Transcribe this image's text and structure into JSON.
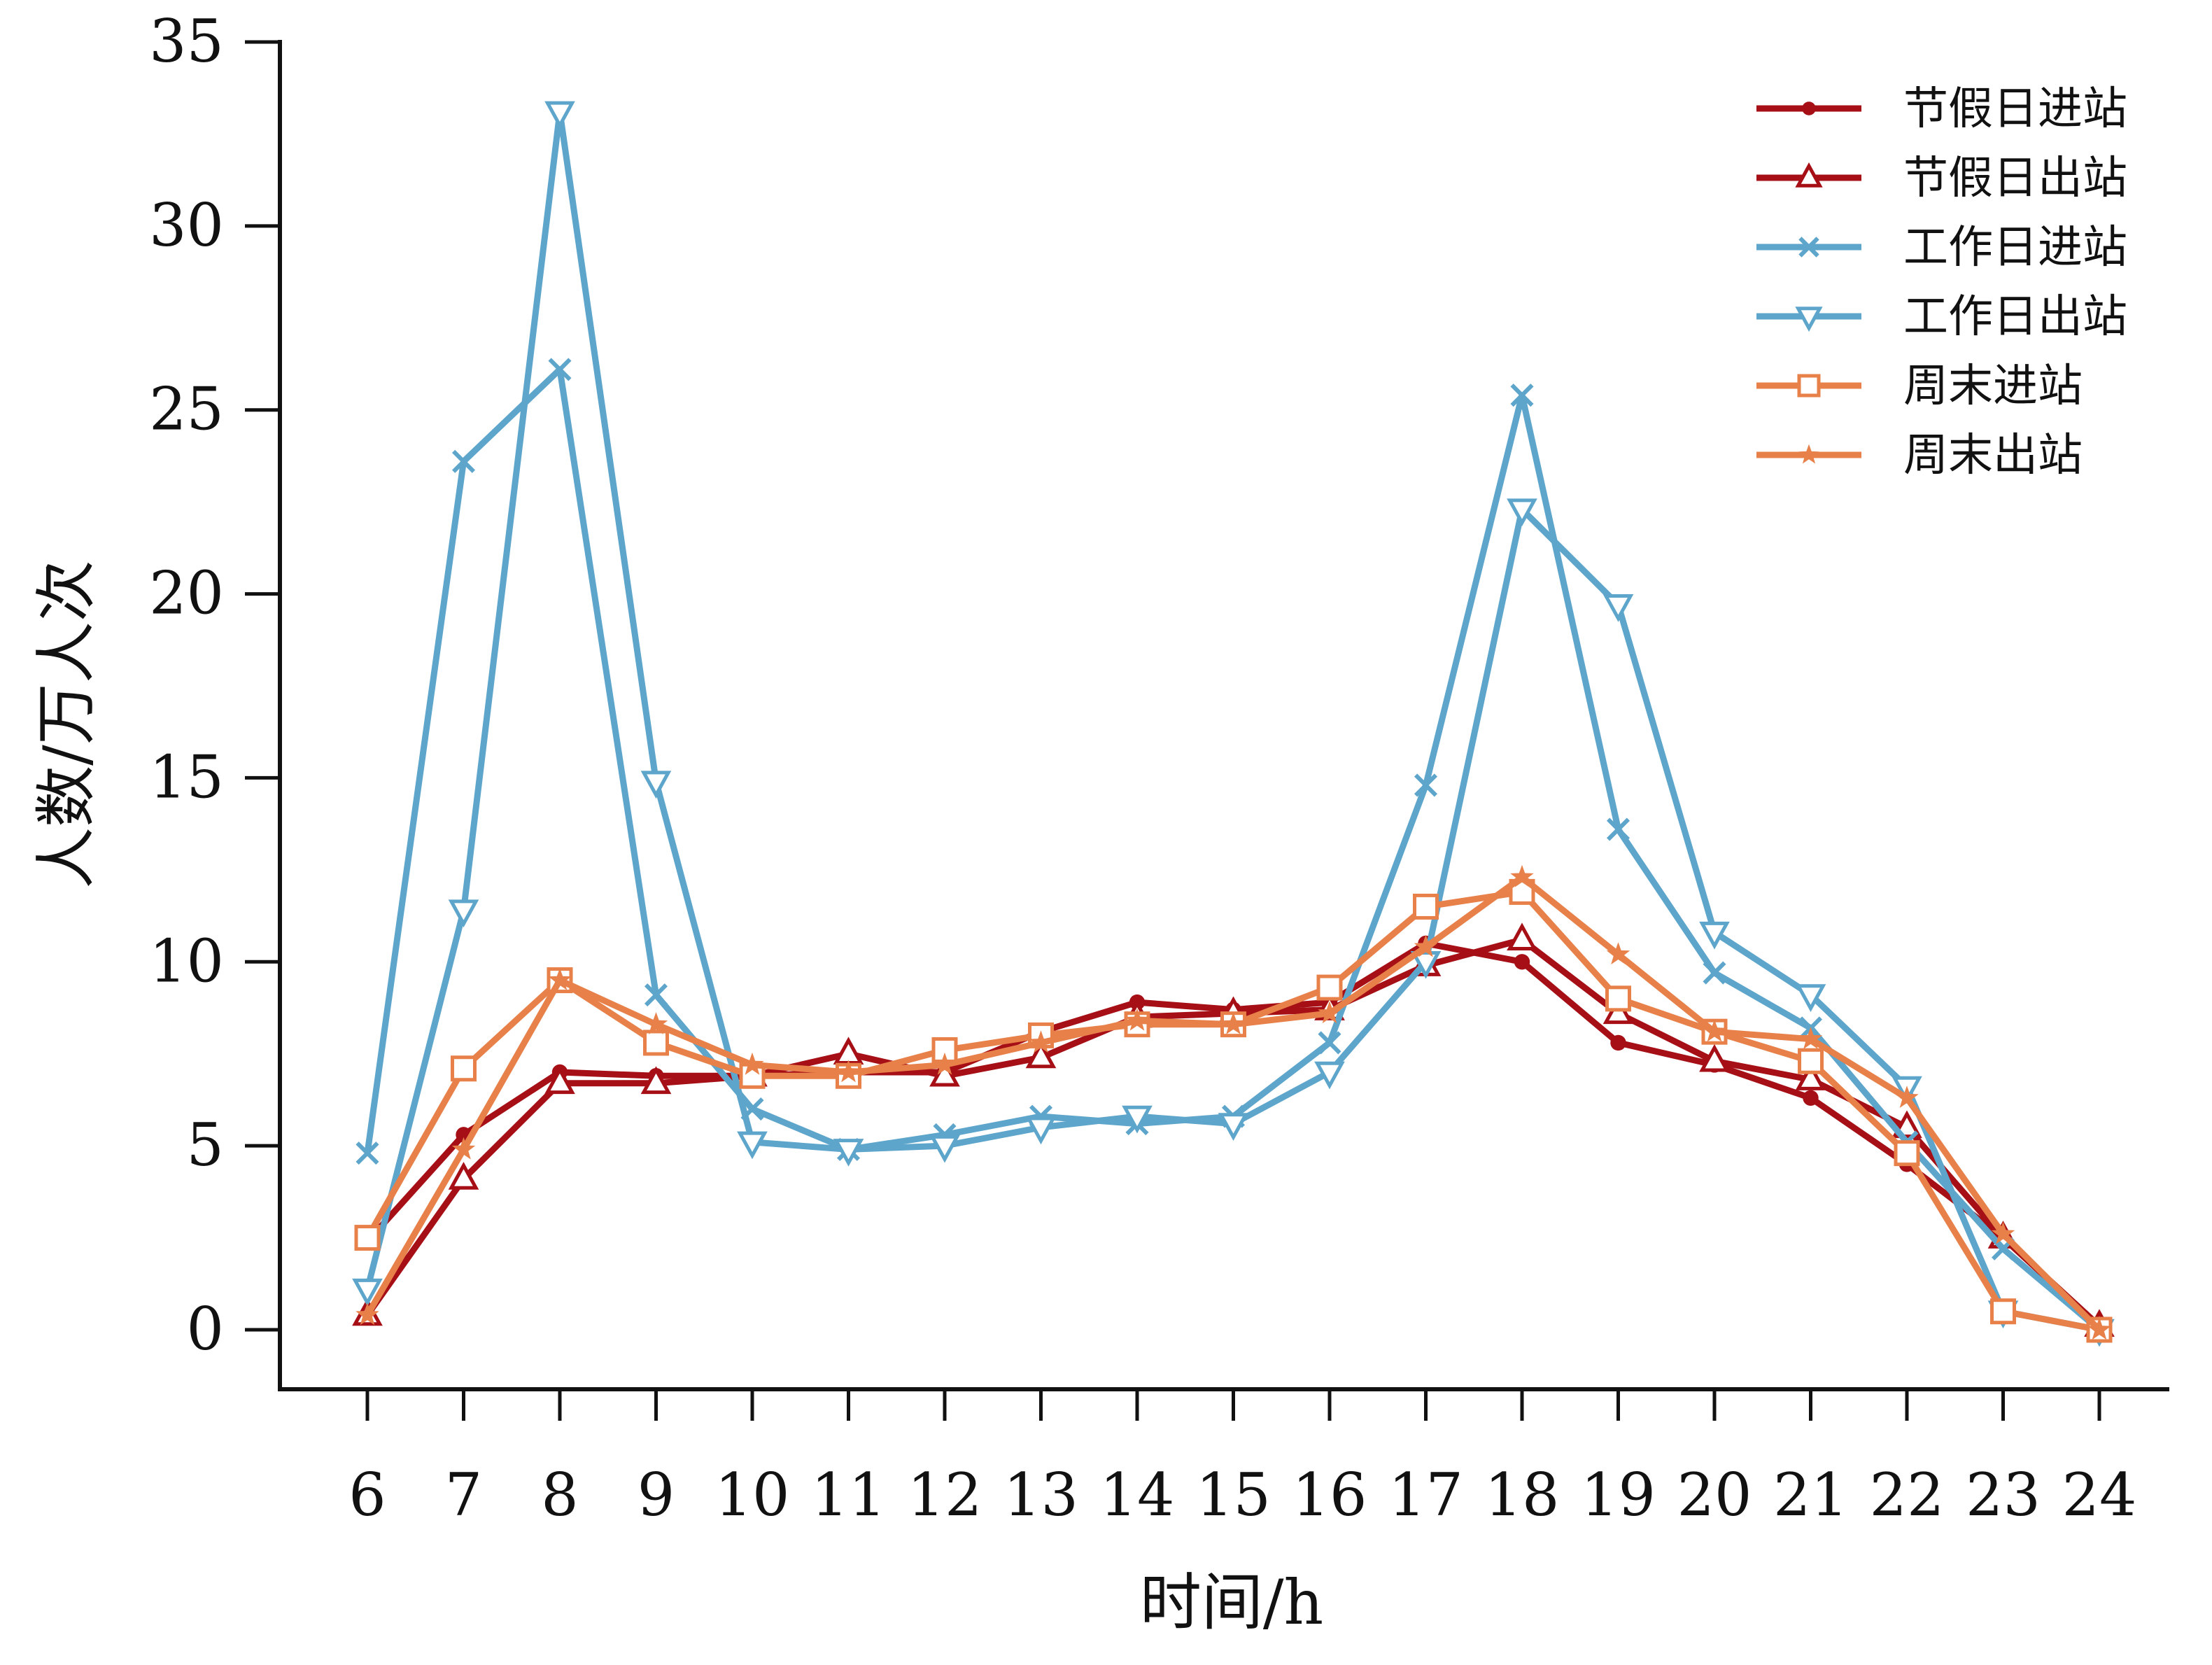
{
  "chart_data": {
    "type": "line",
    "xlabel": "时间/h",
    "ylabel": "人数/万人次",
    "x": [
      6,
      7,
      8,
      9,
      10,
      11,
      12,
      13,
      14,
      15,
      16,
      17,
      18,
      19,
      20,
      21,
      22,
      23,
      24
    ],
    "ylim": [
      0,
      35
    ],
    "yticks": [
      0,
      5,
      10,
      15,
      20,
      25,
      30,
      35
    ],
    "grid": false,
    "legend": "top-right",
    "series": [
      {
        "name": "节假日进站",
        "color": "#A50F15",
        "marker": "dot",
        "values": [
          2.4,
          5.3,
          7.0,
          6.9,
          6.9,
          7.0,
          7.0,
          8.1,
          8.9,
          8.7,
          8.9,
          10.5,
          10.0,
          7.8,
          7.2,
          6.3,
          4.5,
          2.5,
          0.1
        ]
      },
      {
        "name": "节假日出站",
        "color": "#A50F15",
        "marker": "triangle-up",
        "values": [
          0.4,
          4.1,
          6.7,
          6.7,
          6.9,
          7.5,
          6.9,
          7.4,
          8.5,
          8.6,
          8.7,
          9.9,
          10.6,
          8.6,
          7.3,
          6.8,
          5.5,
          2.5,
          0.1
        ]
      },
      {
        "name": "工作日进站",
        "color": "#5DA5CB",
        "marker": "x",
        "values": [
          4.8,
          23.6,
          26.1,
          9.1,
          6.0,
          4.9,
          5.3,
          5.8,
          5.6,
          5.8,
          7.8,
          14.8,
          25.4,
          13.6,
          9.7,
          8.2,
          5.1,
          2.2,
          0.0
        ]
      },
      {
        "name": "工作日出站",
        "color": "#5DA5CB",
        "marker": "triangle-down",
        "values": [
          1.1,
          11.4,
          33.1,
          14.9,
          5.1,
          4.9,
          5.0,
          5.5,
          5.8,
          5.6,
          7.0,
          10.0,
          22.3,
          19.7,
          10.8,
          9.1,
          6.6,
          0.5,
          0.0
        ]
      },
      {
        "name": "周末进站",
        "color": "#E8804A",
        "marker": "square",
        "values": [
          2.5,
          7.1,
          9.5,
          7.8,
          6.9,
          6.9,
          7.6,
          8.0,
          8.3,
          8.3,
          9.3,
          11.5,
          11.9,
          9.0,
          8.1,
          7.3,
          4.8,
          0.5,
          0.0
        ]
      },
      {
        "name": "周末出站",
        "color": "#E8804A",
        "marker": "star",
        "values": [
          0.4,
          4.9,
          9.5,
          8.3,
          7.2,
          7.0,
          7.2,
          7.8,
          8.4,
          8.3,
          8.6,
          10.4,
          12.3,
          10.2,
          8.1,
          7.9,
          6.3,
          2.6,
          0.0
        ]
      }
    ]
  }
}
